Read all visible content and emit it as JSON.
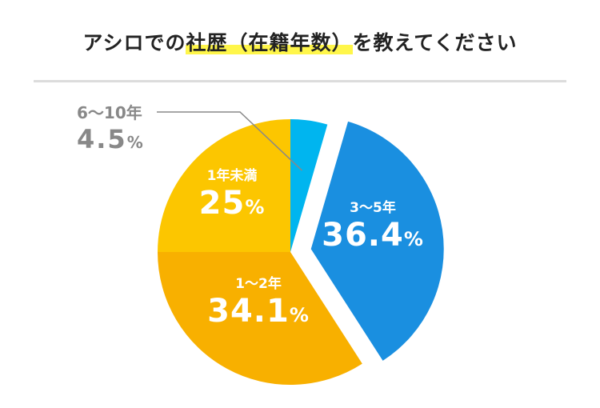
{
  "title": {
    "prefix": "アシロでの",
    "highlight": "社歴（在籍年数）",
    "suffix": "を教えてください"
  },
  "chart_data": {
    "type": "pie",
    "start": "12 o'clock",
    "direction": "clockwise",
    "slices": [
      {
        "label": "6〜10年",
        "value": 4.5,
        "display": "4.5",
        "color": "#00b5ef",
        "exploded": false,
        "label_outside": true
      },
      {
        "label": "3〜5年",
        "value": 36.4,
        "display": "36.4",
        "color": "#1a8fe0",
        "exploded": true,
        "label_outside": false
      },
      {
        "label": "1〜2年",
        "value": 34.1,
        "display": "34.1",
        "color": "#f8b000",
        "exploded": false,
        "label_outside": false
      },
      {
        "label": "1年未満",
        "value": 25,
        "display": "25",
        "color": "#fcc600",
        "exploded": false,
        "label_outside": false
      }
    ],
    "unit": "%"
  }
}
